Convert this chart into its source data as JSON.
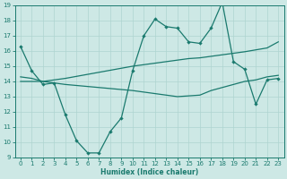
{
  "xlabel": "Humidex (Indice chaleur)",
  "bg_color": "#cde8e5",
  "grid_color": "#aed4d0",
  "line_color": "#1a7a6e",
  "xlim": [
    -0.5,
    23.5
  ],
  "ylim": [
    9,
    19
  ],
  "xticks": [
    0,
    1,
    2,
    3,
    4,
    5,
    6,
    7,
    8,
    9,
    10,
    11,
    12,
    13,
    14,
    15,
    16,
    17,
    18,
    19,
    20,
    21,
    22,
    23
  ],
  "yticks": [
    9,
    10,
    11,
    12,
    13,
    14,
    15,
    16,
    17,
    18,
    19
  ],
  "series1_x": [
    0,
    1,
    2,
    3,
    4,
    5,
    6,
    7,
    8,
    9,
    10,
    11,
    12,
    13,
    14,
    15,
    16,
    17,
    18,
    19,
    20,
    21,
    22,
    23
  ],
  "series1_y": [
    16.3,
    14.7,
    13.8,
    13.9,
    11.8,
    10.1,
    9.3,
    9.3,
    10.7,
    11.6,
    14.7,
    17.0,
    18.1,
    17.6,
    17.5,
    16.6,
    16.5,
    17.5,
    19.2,
    15.3,
    14.8,
    12.5,
    14.1,
    14.2
  ],
  "series2_x": [
    0,
    2,
    3,
    4,
    10,
    11,
    13,
    14,
    15,
    16,
    17,
    18,
    19,
    20,
    22,
    23
  ],
  "series2_y": [
    14.0,
    14.0,
    14.1,
    14.2,
    15.0,
    15.1,
    15.3,
    15.4,
    15.5,
    15.55,
    15.65,
    15.75,
    15.85,
    15.95,
    16.2,
    16.6
  ],
  "series3_x": [
    0,
    1,
    2,
    3,
    4,
    10,
    14,
    15,
    16,
    17,
    18,
    19,
    20,
    21,
    22,
    23
  ],
  "series3_y": [
    14.3,
    14.2,
    14.0,
    13.9,
    13.8,
    13.4,
    13.0,
    13.05,
    13.1,
    13.4,
    13.6,
    13.8,
    14.0,
    14.1,
    14.3,
    14.4
  ]
}
